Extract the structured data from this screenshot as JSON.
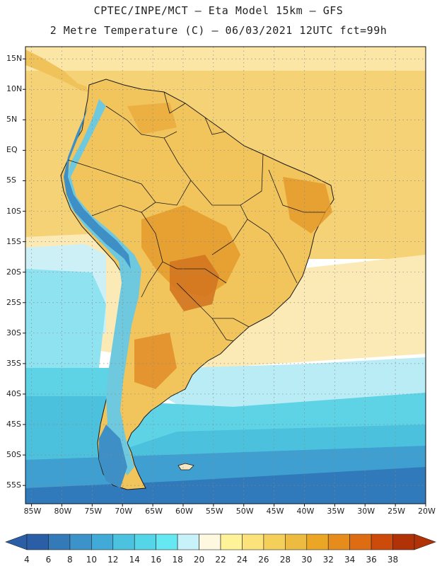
{
  "title": {
    "line1": "CPTEC/INPE/MCT –  Eta Model 15km – GFS",
    "line2": "2 Metre Temperature (C) – 06/03/2021 12UTC fct=99h"
  },
  "map": {
    "region": "South America",
    "lat_labels": [
      "15N",
      "10N",
      "5N",
      "EQ",
      "5S",
      "10S",
      "15S",
      "20S",
      "25S",
      "30S",
      "35S",
      "40S",
      "45S",
      "50S",
      "55S"
    ],
    "lon_labels": [
      "85W",
      "80W",
      "75W",
      "70W",
      "65W",
      "60W",
      "55W",
      "50W",
      "45W",
      "40W",
      "35W",
      "30W",
      "25W",
      "20W"
    ],
    "lat_range": [
      17,
      -58
    ],
    "lon_range": [
      -86,
      -20
    ],
    "gridlines": true
  },
  "colorbar": {
    "labels": [
      "4",
      "6",
      "8",
      "10",
      "12",
      "14",
      "16",
      "18",
      "20",
      "22",
      "24",
      "26",
      "28",
      "30",
      "32",
      "34",
      "36",
      "38"
    ],
    "colors": [
      "#2a5ea6",
      "#3479b8",
      "#3c93c9",
      "#42aad6",
      "#4bc3e0",
      "#55d6e8",
      "#66e8f2",
      "#c8f2fa",
      "#fff8e0",
      "#fff39a",
      "#fbe27a",
      "#f4cf5a",
      "#ecbb40",
      "#eaa624",
      "#e68c1c",
      "#de6c12",
      "#cc4a0a",
      "#b03206"
    ],
    "under_color": "#2a5ea6",
    "over_color": "#b03206"
  },
  "colors": {
    "ocean_north": "#f5d276",
    "ocean_mid": "#fbeab5",
    "ocean_cool": "#cdf0f7",
    "ocean_cyan": "#5fd3e6",
    "ocean_blue": "#3d94c8",
    "land": "#f2c45c",
    "land_hot": "#e59a2a",
    "land_hottest": "#d47520",
    "andes": "#6ec9df",
    "andes_cold": "#3e8fc6",
    "border": "#1a1a1a"
  }
}
